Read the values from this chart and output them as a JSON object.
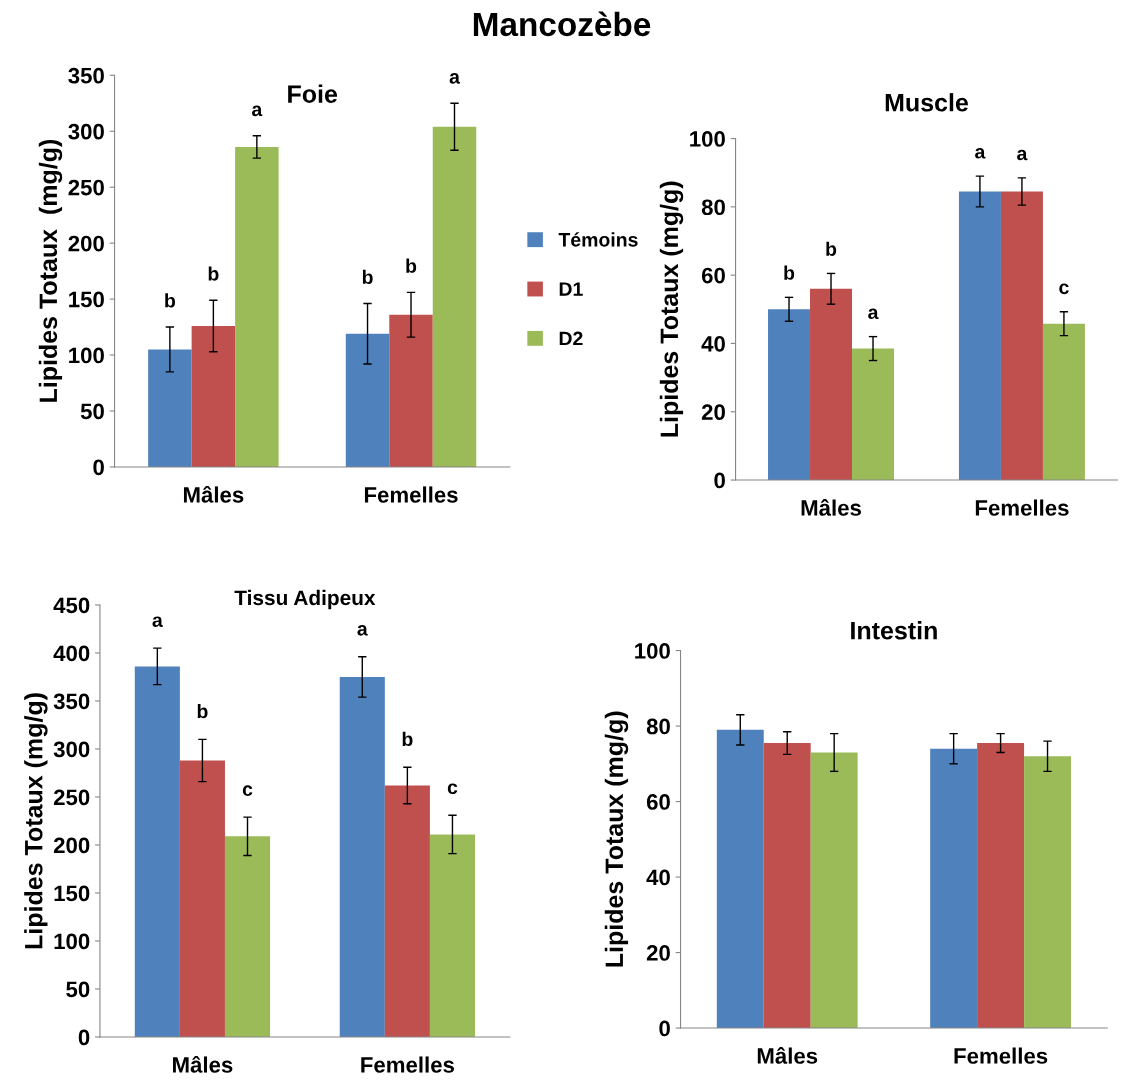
{
  "chart_data": [
    {
      "type": "bar",
      "title": "Foie",
      "ylabel": "Lipides Totaux  (mg/g)",
      "categories": [
        "Mâles",
        "Femelles"
      ],
      "ylim": [
        0,
        350
      ],
      "yticks": [
        0,
        50,
        100,
        150,
        200,
        250,
        300,
        350
      ],
      "legend": "right",
      "series": [
        {
          "name": "Témoins",
          "color": "#4f81bd",
          "values": [
            105,
            119
          ],
          "errors": [
            20,
            27
          ],
          "value_labels": [
            "b",
            "b"
          ]
        },
        {
          "name": "D1",
          "color": "#c0504d",
          "values": [
            126,
            136
          ],
          "errors": [
            23,
            20
          ],
          "value_labels": [
            "b",
            "b"
          ]
        },
        {
          "name": "D2",
          "color": "#9bbb59",
          "values": [
            286,
            304
          ],
          "errors": [
            10,
            21
          ],
          "value_labels": [
            "a",
            "a"
          ]
        }
      ]
    },
    {
      "type": "bar",
      "title": "Muscle",
      "ylabel": "Lipides Totaux (mg/g)",
      "categories": [
        "Mâles",
        "Femelles"
      ],
      "ylim": [
        0,
        100
      ],
      "yticks": [
        0,
        20,
        40,
        60,
        80,
        100
      ],
      "series": [
        {
          "color": "#4f81bd",
          "values": [
            50,
            84.5
          ],
          "errors": [
            3.5,
            4.5
          ],
          "value_labels": [
            "b",
            "a"
          ]
        },
        {
          "color": "#c0504d",
          "values": [
            56,
            84.5
          ],
          "errors": [
            4.5,
            4
          ],
          "value_labels": [
            "b",
            "a"
          ]
        },
        {
          "color": "#9bbb59",
          "values": [
            38.5,
            45.8
          ],
          "errors": [
            3.5,
            3.5
          ],
          "value_labels": [
            "a",
            "c"
          ]
        }
      ]
    },
    {
      "type": "bar",
      "title": "Tissu Adipeux",
      "ylabel": "Lipides Totaux (mg/g)",
      "categories": [
        "Mâles",
        "Femelles"
      ],
      "ylim": [
        0,
        450
      ],
      "yticks": [
        0,
        50,
        100,
        150,
        200,
        250,
        300,
        350,
        400,
        450
      ],
      "series": [
        {
          "color": "#4f81bd",
          "values": [
            386,
            375
          ],
          "errors": [
            19,
            21
          ],
          "value_labels": [
            "a",
            "a"
          ]
        },
        {
          "color": "#c0504d",
          "values": [
            288,
            262
          ],
          "errors": [
            22,
            19
          ],
          "value_labels": [
            "b",
            "b"
          ]
        },
        {
          "color": "#9bbb59",
          "values": [
            209,
            211
          ],
          "errors": [
            20,
            20
          ],
          "value_labels": [
            "c",
            "c"
          ]
        }
      ]
    },
    {
      "type": "bar",
      "title": "Intestin",
      "ylabel": "Lipides Totaux (mg/g)",
      "categories": [
        "Mâles",
        "Femelles"
      ],
      "ylim": [
        0,
        100
      ],
      "yticks": [
        0,
        20,
        40,
        60,
        80,
        100
      ],
      "annotations": [
        "Mancozèbe"
      ],
      "series": [
        {
          "color": "#4f81bd",
          "values": [
            79,
            74
          ],
          "errors": [
            4,
            4
          ]
        },
        {
          "color": "#c0504d",
          "values": [
            75.5,
            75.5
          ],
          "errors": [
            3,
            2.5
          ]
        },
        {
          "color": "#9bbb59",
          "values": [
            73,
            72
          ],
          "errors": [
            5,
            4
          ]
        }
      ]
    }
  ]
}
